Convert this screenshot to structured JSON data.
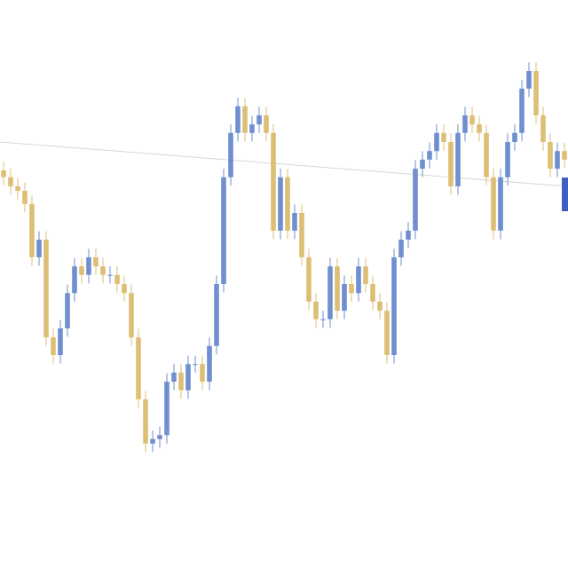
{
  "chart_data": {
    "type": "candlestick",
    "open": [
      70.0,
      68.8,
      67.2,
      66.4,
      64.1,
      54.7,
      57.8,
      40.6,
      37.5,
      42.2,
      48.4,
      53.1,
      51.6,
      54.7,
      53.1,
      51.6,
      51.6,
      50.0,
      48.4,
      40.6,
      29.7,
      21.9,
      22.7,
      23.4,
      32.8,
      34.4,
      31.3,
      35.9,
      35.9,
      32.8,
      39.1,
      50.0,
      68.8,
      76.6,
      81.3,
      76.6,
      78.1,
      79.7,
      76.6,
      59.4,
      68.8,
      59.4,
      62.5,
      54.7,
      46.9,
      43.8,
      43.8,
      53.1,
      45.3,
      50.0,
      48.4,
      53.1,
      50.0,
      46.9,
      45.3,
      37.5,
      54.7,
      57.8,
      59.4,
      70.3,
      71.9,
      73.4,
      76.6,
      75.0,
      67.2,
      76.6,
      79.7,
      78.1,
      76.6,
      68.8,
      59.4,
      68.8,
      75.0,
      76.6,
      84.4,
      87.5,
      79.7,
      75.0,
      70.3,
      73.4
    ],
    "high": [
      71.5,
      70.3,
      68.7,
      67.9,
      65.6,
      59.3,
      59.3,
      42.1,
      43.7,
      49.9,
      54.6,
      54.6,
      56.2,
      56.2,
      54.6,
      53.1,
      53.1,
      51.5,
      49.9,
      42.1,
      31.2,
      24.2,
      24.9,
      34.3,
      35.9,
      35.9,
      37.4,
      37.4,
      37.4,
      40.6,
      51.5,
      70.3,
      78.1,
      82.8,
      82.8,
      79.6,
      81.2,
      81.2,
      78.1,
      70.3,
      70.3,
      64.0,
      64.0,
      56.2,
      48.4,
      45.3,
      54.6,
      54.6,
      51.5,
      51.5,
      54.6,
      54.6,
      51.5,
      48.4,
      46.8,
      56.2,
      59.3,
      60.9,
      71.8,
      73.4,
      74.9,
      78.1,
      78.1,
      76.5,
      78.1,
      81.2,
      81.2,
      79.6,
      78.1,
      70.3,
      70.3,
      76.5,
      78.1,
      85.9,
      89.0,
      89.0,
      81.2,
      76.5,
      74.9,
      74.9
    ],
    "low": [
      67.3,
      65.7,
      64.9,
      62.6,
      53.2,
      53.2,
      39.1,
      36.0,
      36.0,
      40.7,
      46.9,
      50.1,
      50.1,
      51.6,
      50.1,
      50.1,
      48.5,
      46.9,
      39.1,
      28.2,
      20.4,
      20.4,
      21.2,
      21.9,
      31.3,
      29.8,
      29.8,
      34.4,
      31.3,
      31.3,
      37.6,
      48.5,
      67.3,
      75.1,
      75.1,
      75.1,
      76.6,
      75.1,
      57.9,
      57.9,
      57.9,
      57.9,
      53.2,
      45.4,
      42.3,
      42.3,
      42.3,
      43.8,
      43.8,
      46.9,
      46.9,
      48.5,
      45.4,
      43.8,
      36.0,
      36.0,
      53.2,
      56.3,
      57.9,
      68.8,
      70.4,
      71.9,
      73.5,
      65.7,
      65.7,
      75.1,
      76.6,
      75.1,
      67.3,
      57.9,
      57.9,
      67.3,
      73.5,
      75.1,
      82.9,
      78.2,
      73.5,
      68.8,
      68.8,
      70.4
    ],
    "close": [
      68.8,
      67.2,
      66.4,
      64.1,
      54.7,
      57.8,
      40.6,
      37.5,
      42.2,
      48.4,
      53.1,
      51.6,
      54.7,
      53.1,
      51.6,
      51.6,
      50.0,
      48.4,
      40.6,
      29.7,
      21.9,
      22.7,
      23.4,
      32.8,
      34.4,
      31.3,
      35.9,
      35.9,
      32.8,
      39.1,
      50.0,
      68.8,
      76.6,
      81.3,
      76.6,
      78.1,
      79.7,
      76.6,
      59.4,
      68.8,
      59.4,
      62.5,
      54.7,
      46.9,
      43.8,
      43.8,
      53.1,
      45.3,
      50.0,
      48.4,
      53.1,
      50.0,
      46.9,
      45.3,
      37.5,
      54.7,
      57.8,
      59.4,
      70.3,
      71.9,
      73.4,
      76.6,
      75.0,
      67.2,
      76.6,
      79.7,
      78.1,
      76.6,
      68.8,
      59.4,
      68.8,
      75.0,
      76.6,
      84.4,
      87.5,
      79.7,
      75.0,
      70.3,
      73.4,
      71.9
    ],
    "up_color": "#6f8fd0",
    "down_color": "#dcbf74",
    "ylim": [
      0,
      100
    ]
  }
}
